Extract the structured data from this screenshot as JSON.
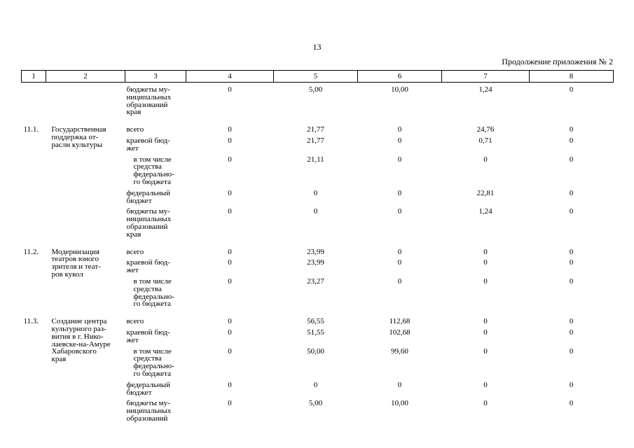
{
  "page": {
    "number": "13",
    "continuation": "Продолжение приложения № 2"
  },
  "table": {
    "columns": [
      "1",
      "2",
      "3",
      "4",
      "5",
      "6",
      "7",
      "8"
    ],
    "groups": [
      {
        "num": "",
        "name": "",
        "rows": [
          {
            "type": "бюджеты му-\nниципальных\nобразований\nкрая",
            "indent": false,
            "values": [
              "0",
              "5,00",
              "10,00",
              "1,24",
              "0"
            ]
          }
        ]
      },
      {
        "num": "11.1.",
        "name": "Государственная\nподдержка от-\nрасли культуры",
        "rows": [
          {
            "type": "всего",
            "indent": false,
            "values": [
              "0",
              "21,77",
              "0",
              "24,76",
              "0"
            ]
          },
          {
            "type": "краевой бюд-\nжет",
            "indent": false,
            "values": [
              "0",
              "21,77",
              "0",
              "0,71",
              "0"
            ]
          },
          {
            "type": "в том числе\nсредства\nфедерально-\nго бюджета",
            "indent": true,
            "values": [
              "0",
              "21,11",
              "0",
              "0",
              "0"
            ]
          },
          {
            "type": "федеральный\nбюджет",
            "indent": false,
            "values": [
              "0",
              "0",
              "0",
              "22,81",
              "0"
            ]
          },
          {
            "type": "бюджеты му-\nниципальных\nобразований\nкрая",
            "indent": false,
            "values": [
              "0",
              "0",
              "0",
              "1,24",
              "0"
            ]
          }
        ]
      },
      {
        "num": "11.2.",
        "name": "Модернизация\nтеатров юного\nзрителя и теат-\nров кукол",
        "rows": [
          {
            "type": "всего",
            "indent": false,
            "values": [
              "0",
              "23,99",
              "0",
              "0",
              "0"
            ]
          },
          {
            "type": "краевой бюд-\nжет",
            "indent": false,
            "values": [
              "0",
              "23,99",
              "0",
              "0",
              "0"
            ]
          },
          {
            "type": "в том числе\nсредства\nфедерально-\nго бюджета",
            "indent": true,
            "values": [
              "0",
              "23,27",
              "0",
              "0",
              "0"
            ]
          }
        ]
      },
      {
        "num": "11.3.",
        "name": "Создание центра\nкультурного раз-\nвития в г. Нико-\nлаевске-на-Амуре\nХабаровского\nкрая",
        "rows": [
          {
            "type": "всего",
            "indent": false,
            "values": [
              "0",
              "56,55",
              "112,68",
              "0",
              "0"
            ]
          },
          {
            "type": "краевой бюд-\nжет",
            "indent": false,
            "values": [
              "0",
              "51,55",
              "102,68",
              "0",
              "0"
            ]
          },
          {
            "type": "в том числе\nсредства\nфедерально-\nго бюджета",
            "indent": true,
            "values": [
              "0",
              "50,00",
              "99,60",
              "0",
              "0"
            ]
          },
          {
            "type": "федеральный\nбюджет",
            "indent": false,
            "values": [
              "0",
              "0",
              "0",
              "0",
              "0"
            ]
          },
          {
            "type": "бюджеты му-\nниципальных\nобразований",
            "indent": false,
            "values": [
              "0",
              "5,00",
              "10,00",
              "0",
              "0"
            ]
          }
        ]
      }
    ]
  }
}
